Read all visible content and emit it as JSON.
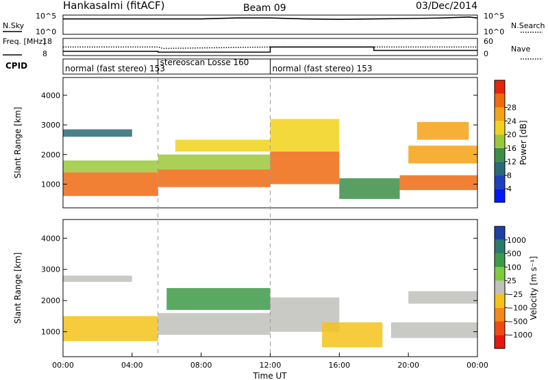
{
  "header": {
    "title": "Hankasalmi (fitACF)",
    "beam": "Beam 09",
    "date": "03/Dec/2014"
  },
  "chart_data": [
    {
      "type": "line",
      "panel": "noise",
      "left_label": "N.Sky",
      "right_label": "N.Search",
      "yticks_left": [
        "10^5",
        "10^0"
      ],
      "yticks_right": [
        "10^5",
        "10^0"
      ],
      "series": [
        {
          "name": "N.Sky",
          "style": "solid",
          "x": [
            0.0,
            2.0,
            4.0,
            6.0,
            8.0,
            10.0,
            12.0,
            14.0,
            16.0,
            18.0,
            20.0,
            22.0,
            23.5,
            24.0
          ],
          "y": [
            0.8,
            0.8,
            0.8,
            0.8,
            0.8,
            0.85,
            0.85,
            0.8,
            0.78,
            0.8,
            0.82,
            0.85,
            0.9,
            0.85
          ]
        }
      ]
    },
    {
      "type": "line",
      "panel": "frequency",
      "left_label": "Freq. [MHz]",
      "right_label": "Nave",
      "yticks_left": [
        "18",
        "8"
      ],
      "yticks_right": [
        "60",
        "0"
      ],
      "series": [
        {
          "name": "Freq.",
          "style": "solid",
          "x": [
            0.0,
            5.5,
            5.5,
            12.0,
            12.0,
            18.0,
            18.0,
            24.0
          ],
          "y": [
            10.5,
            10.5,
            10.0,
            10.0,
            13.0,
            13.0,
            11.0,
            11.0
          ]
        },
        {
          "name": "Nave",
          "style": "dotted",
          "x": [
            0.0,
            5.5,
            5.8,
            12.0,
            18.0,
            24.0
          ],
          "y": [
            30,
            30,
            25,
            30,
            30,
            30
          ]
        }
      ]
    },
    {
      "type": "table",
      "panel": "cpid",
      "label": "CPID",
      "segments": [
        {
          "start": 0.0,
          "end": 5.5,
          "text": "normal (fast stereo) 153"
        },
        {
          "start": 5.5,
          "end": 12.0,
          "text": "stereoscan Losse 160"
        },
        {
          "start": 12.0,
          "end": 24.0,
          "text": "normal (fast stereo) 153"
        }
      ]
    },
    {
      "type": "heatmap",
      "panel": "power",
      "ylabel": "Slant Range [km]",
      "yticks": [
        1000,
        2000,
        3000,
        4000
      ],
      "ylim": [
        200,
        4600
      ],
      "colorbar": {
        "label": "Power [dB]",
        "ticks": [
          "4",
          "8",
          "12",
          "16",
          "20",
          "24",
          "28"
        ],
        "colors": [
          "#0018ff",
          "#1f3fbf",
          "#2a6a78",
          "#3c8e46",
          "#9bc83a",
          "#f2d21a",
          "#f5a214",
          "#f06a10",
          "#e6240c"
        ]
      },
      "regions": [
        {
          "x0": 0.0,
          "x1": 5.5,
          "r0": 600,
          "r1": 1400,
          "value": 28
        },
        {
          "x0": 0.0,
          "x1": 5.5,
          "r0": 1400,
          "r1": 1800,
          "value": 14
        },
        {
          "x0": 0.0,
          "x1": 4.0,
          "r0": 2600,
          "r1": 2850,
          "value": 6
        },
        {
          "x0": 5.5,
          "x1": 12.0,
          "r0": 900,
          "r1": 1500,
          "value": 26
        },
        {
          "x0": 5.5,
          "x1": 12.0,
          "r0": 1500,
          "r1": 2000,
          "value": 14
        },
        {
          "x0": 6.5,
          "x1": 12.0,
          "r0": 2100,
          "r1": 2500,
          "value": 18
        },
        {
          "x0": 12.0,
          "x1": 16.0,
          "r0": 1000,
          "r1": 2100,
          "value": 26
        },
        {
          "x0": 12.0,
          "x1": 16.0,
          "r0": 2100,
          "r1": 3200,
          "value": 20
        },
        {
          "x0": 16.0,
          "x1": 19.5,
          "r0": 500,
          "r1": 1200,
          "value": 10
        },
        {
          "x0": 19.5,
          "x1": 24.0,
          "r0": 800,
          "r1": 1300,
          "value": 27
        },
        {
          "x0": 20.0,
          "x1": 24.0,
          "r0": 1700,
          "r1": 2300,
          "value": 24
        },
        {
          "x0": 20.5,
          "x1": 23.5,
          "r0": 2500,
          "r1": 3100,
          "value": 22
        }
      ]
    },
    {
      "type": "heatmap",
      "panel": "velocity",
      "xlabel": "Time UT",
      "ylabel": "Slant Range [km]",
      "xticks": [
        "00:00",
        "04:00",
        "08:00",
        "12:00",
        "16:00",
        "20:00",
        "00:00"
      ],
      "yticks": [
        1000,
        2000,
        3000,
        4000
      ],
      "ylim": [
        200,
        4600
      ],
      "colorbar": {
        "label": "Velocity [m s⁻¹]",
        "ticks": [
          "1000",
          "500",
          "100",
          "25",
          "−25",
          "−100",
          "−500",
          "−1000"
        ],
        "colors": [
          "#1f3fa8",
          "#2a7a6c",
          "#3c9a46",
          "#7ccc3c",
          "#c0c0bc",
          "#f5c21a",
          "#f58a14",
          "#f04a10",
          "#e6180c"
        ]
      },
      "regions": [
        {
          "x0": 0.0,
          "x1": 5.5,
          "r0": 700,
          "r1": 1500,
          "value": -100
        },
        {
          "x0": 0.0,
          "x1": 4.0,
          "r0": 2600,
          "r1": 2800,
          "value": 0
        },
        {
          "x0": 5.5,
          "x1": 12.0,
          "r0": 900,
          "r1": 1600,
          "value": 0
        },
        {
          "x0": 6.0,
          "x1": 12.0,
          "r0": 1700,
          "r1": 2400,
          "value": 150
        },
        {
          "x0": 12.0,
          "x1": 16.0,
          "r0": 1000,
          "r1": 2100,
          "value": 0
        },
        {
          "x0": 15.0,
          "x1": 18.5,
          "r0": 500,
          "r1": 1300,
          "value": -200
        },
        {
          "x0": 19.0,
          "x1": 24.0,
          "r0": 800,
          "r1": 1300,
          "value": 0
        },
        {
          "x0": 20.0,
          "x1": 24.0,
          "r0": 1900,
          "r1": 2300,
          "value": 0
        }
      ]
    }
  ]
}
